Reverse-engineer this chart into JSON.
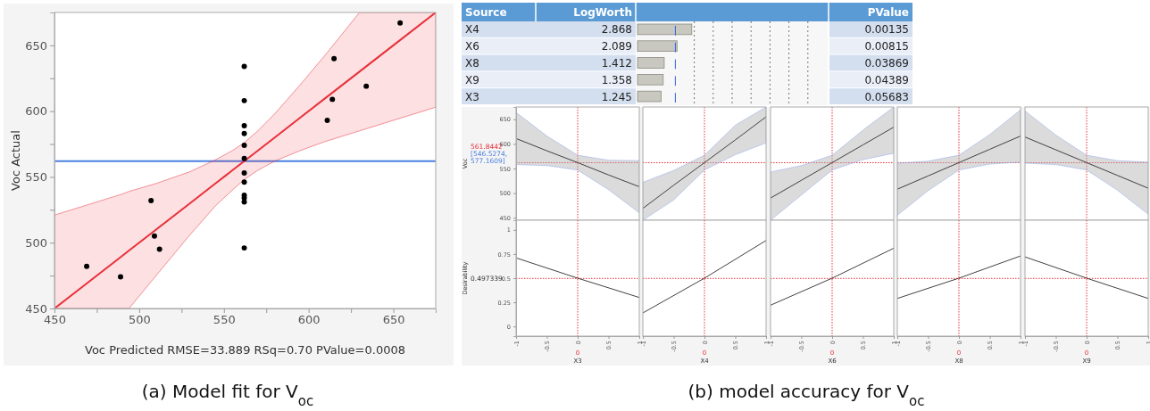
{
  "chart_data": [
    {
      "type": "scatter",
      "xlabel": "Voc Predicted RMSE=33.889 RSq=0.70 PValue=0.0008",
      "ylabel": "Voc Actual",
      "annotations": [
        "(a) Model fit for V$_{oc}$"
      ],
      "xlim": [
        450,
        675
      ],
      "ylim": [
        450,
        675
      ],
      "xticks": [
        450,
        {
          "value": 475,
          "label": null
        },
        500,
        {
          "value": 525,
          "label": null
        },
        550,
        {
          "value": 575,
          "label": null
        },
        600,
        {
          "value": 625,
          "label": null
        },
        650
      ],
      "yticks": [
        450,
        {
          "value": 475,
          "label": null
        },
        500,
        {
          "value": 525,
          "label": null
        },
        550,
        {
          "value": 575,
          "label": null
        },
        600,
        {
          "value": 625,
          "label": null
        },
        650
      ],
      "ref_lines": [
        {
          "axis": "y",
          "value": 562,
          "color": "#4a7fe0"
        }
      ],
      "series": [
        {
          "type": "scatter",
          "marker": "circle",
          "color": "#000000",
          "x": [
            469,
            489,
            507,
            509,
            512,
            562,
            562,
            562,
            562,
            562,
            562,
            562,
            562,
            562,
            562,
            562,
            562,
            615,
            614,
            611,
            634,
            654
          ],
          "values": [
            482,
            474,
            532,
            505,
            495,
            634,
            608,
            589,
            583,
            574,
            564,
            553,
            546,
            536,
            534,
            531,
            496,
            640,
            609,
            593,
            619,
            667
          ]
        },
        {
          "type": "line",
          "color": "#e8303a",
          "x": [
            450,
            470,
            490,
            494,
            510,
            530,
            545,
            555,
            562,
            570,
            580,
            595,
            610,
            630,
            650,
            675
          ],
          "values": [
            450,
            470,
            490,
            494,
            510,
            530,
            545,
            555,
            562,
            570,
            580,
            595,
            610,
            630,
            650,
            675
          ],
          "lower": [
            450,
            450,
            450,
            450,
            475,
            506,
            528,
            540,
            548,
            555,
            562,
            570,
            577,
            585,
            593,
            603
          ],
          "upper": [
            521,
            529,
            537,
            539,
            545,
            554,
            563,
            570,
            576,
            585,
            598,
            620,
            643,
            675,
            675,
            675
          ]
        }
      ]
    },
    {
      "type": "bar",
      "orientation": "horizontal",
      "categories": [
        "X4",
        "X6",
        "X8",
        "X9",
        "X3"
      ],
      "values": [
        2.868,
        2.089,
        1.412,
        1.358,
        1.245
      ],
      "color": "#c8c8c0",
      "data_labels": true,
      "xlim": [
        0,
        10
      ],
      "xticks": [
        {
          "value": 3,
          "label": null
        },
        {
          "value": 4,
          "label": null
        },
        {
          "value": 5,
          "label": null
        },
        {
          "value": 6,
          "label": null
        },
        {
          "value": 7,
          "label": null
        },
        {
          "value": 8,
          "label": null
        },
        {
          "value": 9,
          "label": null
        }
      ],
      "grid": "x",
      "tick_labels": "y",
      "xlabel": "LogWorth",
      "ylabel": "Source",
      "ref_lines": [
        {
          "axis": "x",
          "value": 2,
          "color": "#2f5fe0"
        }
      ],
      "annotations": [
        "PValue",
        "0.00135",
        "0.00815",
        "0.03869",
        "0.04389",
        "0.05683",
        "(b) model accuracy for V$_{oc}$"
      ]
    },
    {
      "type": "line",
      "ylabel": "Voc",
      "xlim": [
        -1,
        1
      ],
      "ylim": [
        445,
        675
      ],
      "yticks": [
        450,
        500,
        550,
        600,
        650
      ],
      "tick_labels": "y",
      "annotations": [
        "561.8442",
        "[546.5274, 577.1609]"
      ],
      "ref_lines": [
        {
          "axis": "x",
          "value": 0,
          "color": "#e8303a",
          "line_style": "dotted"
        },
        {
          "axis": "y",
          "value": 561.8442,
          "color": "#e8303a",
          "line_style": "dotted"
        }
      ],
      "series": [
        {
          "color": "#404040",
          "x": [
            -1,
            -0.5,
            0,
            0.5,
            1
          ],
          "values": [
            611,
            586,
            562,
            537,
            513
          ],
          "lower": [
            558,
            556,
            547,
            507,
            460
          ],
          "upper": [
            664,
            616,
            577,
            567,
            566
          ]
        }
      ]
    },
    {
      "type": "line",
      "xlim": [
        -1,
        1
      ],
      "ylim": [
        445,
        675
      ],
      "tick_labels": false,
      "ref_lines": [
        {
          "axis": "x",
          "value": 0,
          "color": "#e8303a",
          "line_style": "dotted"
        },
        {
          "axis": "y",
          "value": 561.8442,
          "color": "#e8303a",
          "line_style": "dotted"
        }
      ],
      "series": [
        {
          "color": "#404040",
          "x": [
            -1,
            -0.5,
            0,
            0.5,
            1
          ],
          "values": [
            469,
            516,
            562,
            608,
            655
          ],
          "lower": [
            445,
            486,
            547,
            578,
            602
          ],
          "upper": [
            522,
            546,
            577,
            638,
            675
          ]
        }
      ]
    },
    {
      "type": "line",
      "xlim": [
        -1,
        1
      ],
      "ylim": [
        445,
        675
      ],
      "tick_labels": false,
      "ref_lines": [
        {
          "axis": "x",
          "value": 0,
          "color": "#e8303a",
          "line_style": "dotted"
        },
        {
          "axis": "y",
          "value": 561.8442,
          "color": "#e8303a",
          "line_style": "dotted"
        }
      ],
      "series": [
        {
          "color": "#404040",
          "x": [
            -1,
            -0.5,
            0,
            0.5,
            1
          ],
          "values": [
            490,
            526,
            562,
            598,
            634
          ],
          "lower": [
            445,
            496,
            547,
            568,
            581
          ],
          "upper": [
            543,
            556,
            577,
            628,
            675
          ]
        }
      ]
    },
    {
      "type": "line",
      "xlim": [
        -1,
        1
      ],
      "ylim": [
        445,
        675
      ],
      "tick_labels": false,
      "ref_lines": [
        {
          "axis": "x",
          "value": 0,
          "color": "#e8303a",
          "line_style": "dotted"
        },
        {
          "axis": "y",
          "value": 561.8442,
          "color": "#e8303a",
          "line_style": "dotted"
        }
      ],
      "series": [
        {
          "color": "#404040",
          "x": [
            -1,
            -0.5,
            0,
            0.5,
            1
          ],
          "values": [
            508,
            535,
            562,
            589,
            616
          ],
          "lower": [
            455,
            505,
            547,
            559,
            563
          ],
          "upper": [
            561,
            565,
            577,
            619,
            669
          ]
        }
      ]
    },
    {
      "type": "line",
      "xlim": [
        -1,
        1
      ],
      "ylim": [
        445,
        675
      ],
      "tick_labels": false,
      "ref_lines": [
        {
          "axis": "x",
          "value": 0,
          "color": "#e8303a",
          "line_style": "dotted"
        },
        {
          "axis": "y",
          "value": 561.8442,
          "color": "#e8303a",
          "line_style": "dotted"
        }
      ],
      "series": [
        {
          "color": "#404040",
          "x": [
            -1,
            -0.5,
            0,
            0.5,
            1
          ],
          "values": [
            614,
            588,
            562,
            536,
            510
          ],
          "lower": [
            561,
            558,
            547,
            506,
            457
          ],
          "upper": [
            667,
            618,
            577,
            566,
            563
          ]
        }
      ]
    },
    {
      "type": "line",
      "xlabel": "X3",
      "ylabel": "Desirability",
      "xlim": [
        -1,
        1
      ],
      "ylim": [
        -0.1,
        1.1
      ],
      "xticks": [
        -1,
        -0.5,
        0,
        0.5,
        1
      ],
      "yticks": [
        0,
        0.25,
        0.5,
        0.75,
        1
      ],
      "annotations": [
        "0.497339",
        "0"
      ],
      "ref_lines": [
        {
          "axis": "x",
          "value": 0,
          "color": "#e8303a",
          "line_style": "dotted"
        },
        {
          "axis": "y",
          "value": 0.497339,
          "color": "#e8303a",
          "line_style": "dotted"
        }
      ],
      "series": [
        {
          "color": "#404040",
          "x": [
            -1,
            0,
            1
          ],
          "values": [
            0.71,
            0.5,
            0.3
          ]
        }
      ]
    },
    {
      "type": "line",
      "xlabel": "X4",
      "xlim": [
        -1,
        1
      ],
      "ylim": [
        -0.1,
        1.1
      ],
      "xticks": [
        -1,
        -0.5,
        0,
        0.5,
        1
      ],
      "tick_labels": "x",
      "annotations": [
        "0"
      ],
      "ref_lines": [
        {
          "axis": "x",
          "value": 0,
          "color": "#e8303a",
          "line_style": "dotted"
        },
        {
          "axis": "y",
          "value": 0.497339,
          "color": "#e8303a",
          "line_style": "dotted"
        }
      ],
      "series": [
        {
          "color": "#404040",
          "x": [
            -1,
            0,
            1
          ],
          "values": [
            0.14,
            0.5,
            0.89
          ]
        }
      ]
    },
    {
      "type": "line",
      "xlabel": "X6",
      "xlim": [
        -1,
        1
      ],
      "ylim": [
        -0.1,
        1.1
      ],
      "xticks": [
        -1,
        -0.5,
        0,
        0.5,
        1
      ],
      "tick_labels": "x",
      "annotations": [
        "0"
      ],
      "ref_lines": [
        {
          "axis": "x",
          "value": 0,
          "color": "#e8303a",
          "line_style": "dotted"
        },
        {
          "axis": "y",
          "value": 0.497339,
          "color": "#e8303a",
          "line_style": "dotted"
        }
      ],
      "series": [
        {
          "color": "#404040",
          "x": [
            -1,
            0,
            1
          ],
          "values": [
            0.22,
            0.5,
            0.81
          ]
        }
      ]
    },
    {
      "type": "line",
      "xlabel": "X8",
      "xlim": [
        -1,
        1
      ],
      "ylim": [
        -0.1,
        1.1
      ],
      "xticks": [
        -1,
        -0.5,
        0,
        0.5,
        1
      ],
      "tick_labels": "x",
      "annotations": [
        "0"
      ],
      "ref_lines": [
        {
          "axis": "x",
          "value": 0,
          "color": "#e8303a",
          "line_style": "dotted"
        },
        {
          "axis": "y",
          "value": 0.497339,
          "color": "#e8303a",
          "line_style": "dotted"
        }
      ],
      "series": [
        {
          "color": "#404040",
          "x": [
            -1,
            0,
            1
          ],
          "values": [
            0.29,
            0.5,
            0.73
          ]
        }
      ]
    },
    {
      "type": "line",
      "xlabel": "X9",
      "xlim": [
        -1,
        1
      ],
      "ylim": [
        -0.1,
        1.1
      ],
      "xticks": [
        -1,
        -0.5,
        0,
        0.5,
        1
      ],
      "tick_labels": "x",
      "annotations": [
        "0"
      ],
      "ref_lines": [
        {
          "axis": "x",
          "value": 0,
          "color": "#e8303a",
          "line_style": "dotted"
        },
        {
          "axis": "y",
          "value": 0.497339,
          "color": "#e8303a",
          "line_style": "dotted"
        }
      ],
      "series": [
        {
          "color": "#404040",
          "x": [
            -1,
            0,
            1
          ],
          "values": [
            0.72,
            0.5,
            0.29
          ]
        }
      ]
    }
  ]
}
